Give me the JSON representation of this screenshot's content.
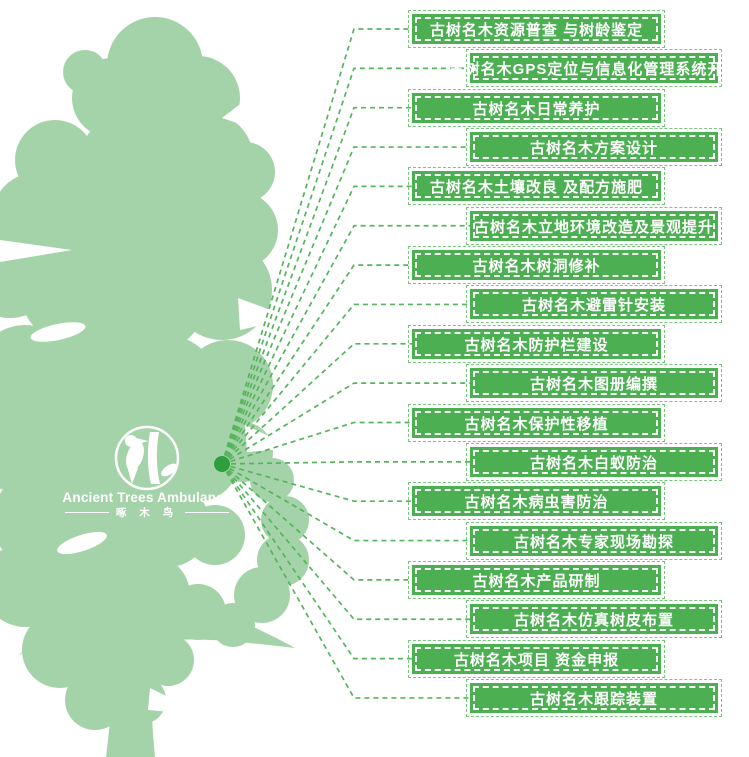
{
  "colors": {
    "box_green": "#4CB052",
    "tree_green": "#A5D3A9",
    "connector_green": "#55B55C",
    "hub_dot_green": "#2F9E3C",
    "text_white": "#FFFFFF"
  },
  "logo": {
    "title": "Ancient Trees Ambulance",
    "subtitle": "啄 木 鸟"
  },
  "services": [
    {
      "label": "古树名木资源普查 与树龄鉴定"
    },
    {
      "label": "古树名木GPS定位与信息化管理系统开发"
    },
    {
      "label": "古树名木日常养护"
    },
    {
      "label": "古树名木方案设计"
    },
    {
      "label": "古树名木土壤改良 及配方施肥"
    },
    {
      "label": "古树名木立地环境改造及景观提升"
    },
    {
      "label": "古树名木树洞修补"
    },
    {
      "label": "古树名木避雷针安装"
    },
    {
      "label": "古树名木防护栏建设"
    },
    {
      "label": "古树名木图册编撰"
    },
    {
      "label": "古树名木保护性移植"
    },
    {
      "label": "古树名木白蚁防治"
    },
    {
      "label": "古树名木病虫害防治"
    },
    {
      "label": "古树名木专家现场勘探"
    },
    {
      "label": "古树名木产品研制"
    },
    {
      "label": "古树名木仿真树皮布置"
    },
    {
      "label": "古树名木项目 资金申报"
    },
    {
      "label": "古树名木跟踪装置"
    }
  ]
}
